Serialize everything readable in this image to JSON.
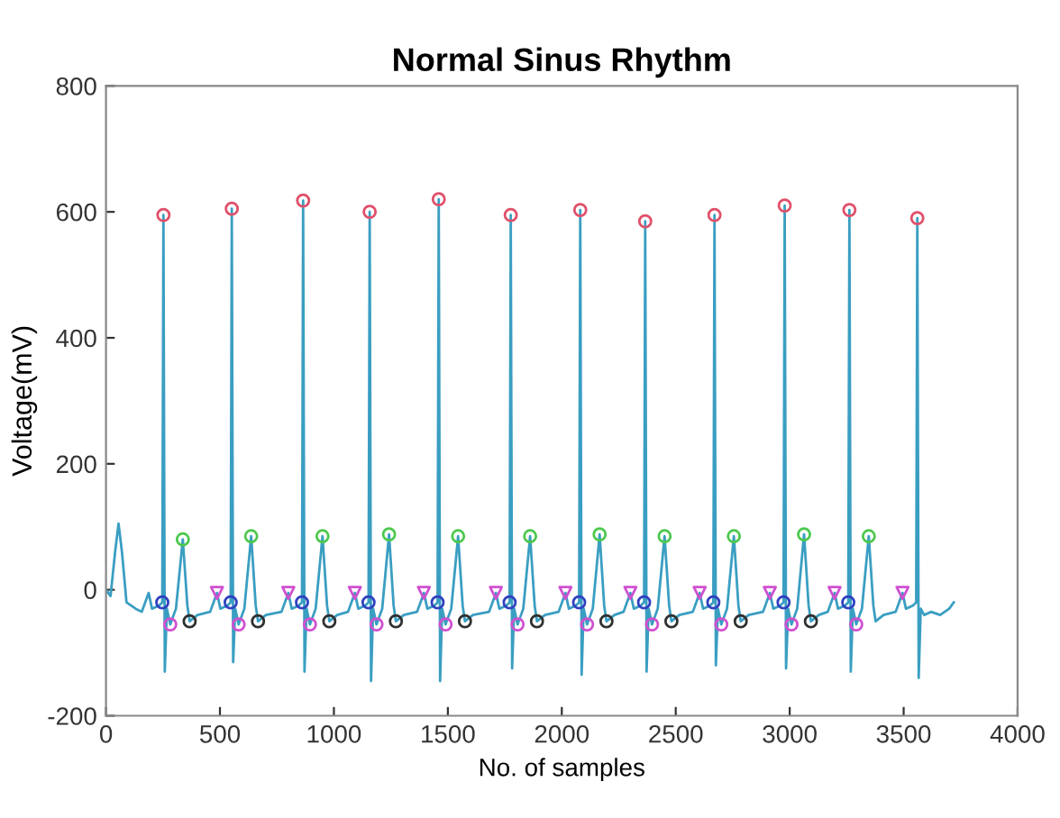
{
  "chart_data": {
    "type": "line",
    "title": "Normal Sinus Rhythm",
    "xlabel": "No. of samples",
    "ylabel": "Voltage(mV)",
    "xlim": [
      0,
      4000
    ],
    "xticks": [
      0,
      500,
      1000,
      1500,
      2000,
      2500,
      3000,
      3500,
      4000
    ],
    "ylim": [
      -200,
      800
    ],
    "yticks": [
      -200,
      0,
      200,
      400,
      600,
      800
    ],
    "grid": false,
    "legend": false,
    "series": [
      {
        "type": "line",
        "color": "#3a9ec2",
        "marker": "none",
        "line_style": "solid",
        "x": [
          0,
          20,
          40,
          55,
          70,
          90,
          130,
          157,
          187,
          202,
          232,
          247,
          252,
          258,
          267,
          282,
          307,
          337,
          357,
          367,
          402,
          457,
          487,
          502,
          532,
          547,
          552,
          558,
          567,
          582,
          607,
          637,
          657,
          667,
          702,
          770,
          800,
          815,
          845,
          860,
          865,
          871,
          880,
          895,
          920,
          950,
          970,
          980,
          1015,
          1062,
          1092,
          1107,
          1137,
          1152,
          1157,
          1163,
          1172,
          1187,
          1212,
          1242,
          1262,
          1272,
          1307,
          1365,
          1395,
          1410,
          1440,
          1455,
          1460,
          1466,
          1475,
          1490,
          1515,
          1545,
          1565,
          1575,
          1610,
          1681,
          1711,
          1726,
          1756,
          1771,
          1776,
          1782,
          1791,
          1806,
          1831,
          1861,
          1881,
          1891,
          1926,
          1986,
          2016,
          2031,
          2061,
          2076,
          2081,
          2087,
          2096,
          2111,
          2136,
          2166,
          2186,
          2196,
          2231,
          2271,
          2301,
          2316,
          2346,
          2361,
          2366,
          2372,
          2381,
          2396,
          2421,
          2451,
          2471,
          2481,
          2516,
          2575,
          2605,
          2620,
          2650,
          2665,
          2670,
          2676,
          2685,
          2700,
          2725,
          2755,
          2775,
          2785,
          2820,
          2883,
          2913,
          2928,
          2958,
          2973,
          2978,
          2984,
          2993,
          3008,
          3033,
          3063,
          3083,
          3093,
          3128,
          3167,
          3197,
          3212,
          3242,
          3257,
          3262,
          3268,
          3277,
          3292,
          3317,
          3347,
          3367,
          3377,
          3412,
          3465,
          3495,
          3510,
          3540,
          3555,
          3560,
          3566,
          3575,
          3590,
          3620,
          3660,
          3700,
          3720
        ],
        "values": [
          0,
          -10,
          60,
          105,
          60,
          -20,
          -30,
          -35,
          -5,
          -30,
          -25,
          -20,
          595,
          -130,
          -30,
          -55,
          -30,
          80,
          -25,
          -50,
          -40,
          -35,
          -5,
          -30,
          -25,
          -20,
          605,
          -115,
          -30,
          -55,
          -30,
          85,
          -25,
          -50,
          -40,
          -35,
          -5,
          -30,
          -25,
          -20,
          618,
          -130,
          -30,
          -55,
          -30,
          85,
          -25,
          -50,
          -40,
          -35,
          -5,
          -30,
          -25,
          -20,
          600,
          -145,
          -30,
          -55,
          -30,
          88,
          -25,
          -50,
          -40,
          -35,
          -5,
          -30,
          -25,
          -20,
          620,
          -145,
          -30,
          -55,
          -30,
          85,
          -25,
          -50,
          -40,
          -35,
          -5,
          -30,
          -25,
          -20,
          595,
          -125,
          -30,
          -55,
          -30,
          85,
          -25,
          -50,
          -40,
          -35,
          -5,
          -30,
          -25,
          -20,
          603,
          -135,
          -30,
          -55,
          -30,
          88,
          -25,
          -50,
          -40,
          -35,
          -5,
          -30,
          -25,
          -20,
          585,
          -130,
          -30,
          -55,
          -30,
          85,
          -25,
          -50,
          -40,
          -35,
          -5,
          -30,
          -25,
          -20,
          595,
          -120,
          -30,
          -55,
          -30,
          85,
          -25,
          -50,
          -40,
          -35,
          -5,
          -30,
          -25,
          -20,
          610,
          -125,
          -30,
          -55,
          -30,
          88,
          -25,
          -50,
          -40,
          -35,
          -5,
          -30,
          -25,
          -20,
          603,
          -130,
          -30,
          -55,
          -30,
          85,
          -25,
          -50,
          -40,
          -35,
          -5,
          -30,
          -25,
          -20,
          590,
          -140,
          -30,
          -40,
          -35,
          -40,
          -30,
          -20
        ]
      },
      {
        "type": "scatter",
        "color": "#e0506a",
        "marker": "circle",
        "x": [
          252,
          552,
          865,
          1157,
          1460,
          1776,
          2081,
          2366,
          2670,
          2978,
          3262,
          3560
        ],
        "values": [
          595,
          605,
          618,
          600,
          620,
          595,
          603,
          585,
          595,
          610,
          603,
          590
        ]
      },
      {
        "type": "scatter",
        "color": "#4cc84c",
        "marker": "circle",
        "x": [
          337,
          637,
          950,
          1242,
          1545,
          1861,
          2166,
          2451,
          2755,
          3063,
          3347
        ],
        "values": [
          80,
          85,
          85,
          88,
          85,
          85,
          88,
          85,
          85,
          88,
          85
        ]
      },
      {
        "type": "scatter",
        "color": "#d050d0",
        "marker": "triangle",
        "x": [
          487,
          800,
          1092,
          1395,
          1711,
          2016,
          2301,
          2605,
          2913,
          3197,
          3495
        ],
        "values": [
          -5,
          -5,
          -5,
          -5,
          -5,
          -5,
          -5,
          -5,
          -5,
          -5,
          -5
        ]
      },
      {
        "type": "scatter",
        "color": "#3040c0",
        "marker": "circle",
        "x": [
          247,
          547,
          860,
          1152,
          1455,
          1771,
          2076,
          2361,
          2665,
          2973,
          3257
        ],
        "values": [
          -20,
          -20,
          -20,
          -20,
          -20,
          -20,
          -20,
          -20,
          -20,
          -20,
          -20
        ]
      },
      {
        "type": "scatter",
        "color": "#d050d0",
        "marker": "circle",
        "x": [
          282,
          582,
          895,
          1187,
          1490,
          1806,
          2111,
          2396,
          2700,
          3008,
          3292
        ],
        "values": [
          -55,
          -55,
          -55,
          -55,
          -55,
          -55,
          -55,
          -55,
          -55,
          -55,
          -55
        ]
      },
      {
        "type": "scatter",
        "color": "#303030",
        "marker": "circle",
        "x": [
          367,
          667,
          980,
          1272,
          1575,
          1891,
          2196,
          2481,
          2785,
          3093
        ],
        "values": [
          -50,
          -50,
          -50,
          -50,
          -50,
          -50,
          -50,
          -50,
          -50,
          -50
        ]
      }
    ]
  }
}
